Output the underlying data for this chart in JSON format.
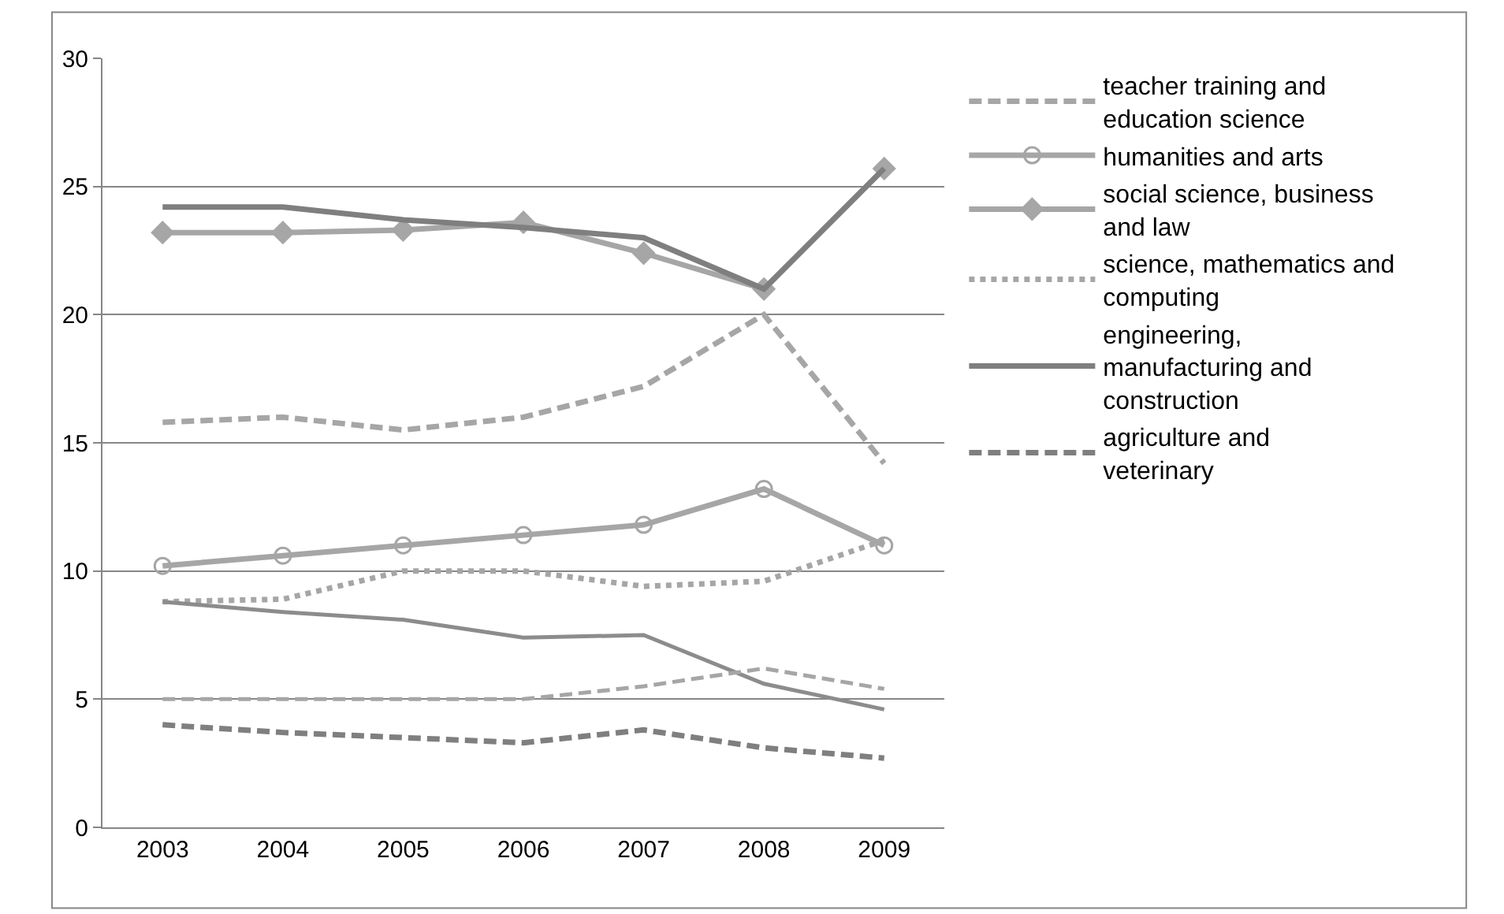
{
  "chart_data": {
    "type": "line",
    "categories": [
      "2003",
      "2004",
      "2005",
      "2006",
      "2007",
      "2008",
      "2009"
    ],
    "ylim": [
      0,
      30
    ],
    "yticks": [
      0,
      5,
      10,
      15,
      20,
      25,
      30
    ],
    "grid": "y",
    "legend": "right",
    "series": [
      {
        "name": "teacher training and education science",
        "color": "#a6a6a6",
        "line_style": "dashed",
        "marker": "none",
        "values": [
          15.8,
          16.0,
          15.5,
          16.0,
          17.2,
          20.0,
          14.2
        ]
      },
      {
        "name": "humanities and arts",
        "color": "#a6a6a6",
        "line_style": "solid",
        "marker": "circle",
        "values": [
          10.2,
          10.6,
          11.0,
          11.4,
          11.8,
          13.2,
          11.0
        ]
      },
      {
        "name": "social science, business and law",
        "color": "#a6a6a6",
        "line_style": "solid",
        "marker": "diamond",
        "values": [
          23.2,
          23.2,
          23.3,
          23.6,
          22.4,
          21.0,
          25.7
        ]
      },
      {
        "name": "science, mathematics and computing",
        "color": "#a6a6a6",
        "line_style": "dotted",
        "marker": "none",
        "values": [
          8.8,
          8.9,
          10.0,
          10.0,
          9.4,
          9.6,
          11.2
        ]
      },
      {
        "name": "engineering, manufacturing and construction",
        "color": "#7f7f7f",
        "line_style": "solid",
        "marker": "none",
        "values": [
          24.2,
          24.2,
          23.7,
          23.4,
          23.0,
          21.0,
          25.7
        ]
      },
      {
        "name": "agriculture and veterinary",
        "color": "#7f7f7f",
        "line_style": "dashed",
        "marker": "none",
        "values": [
          4.0,
          3.7,
          3.5,
          3.3,
          3.8,
          3.1,
          2.7
        ]
      },
      {
        "color": "#8c8c8c",
        "line_style": "solid",
        "marker": "none",
        "values": [
          8.8,
          8.4,
          8.1,
          7.4,
          7.5,
          5.6,
          4.6
        ]
      },
      {
        "color": "#a6a6a6",
        "line_style": "dashed",
        "marker": "none",
        "values": [
          5.0,
          5.0,
          5.0,
          5.0,
          5.5,
          6.2,
          5.4
        ]
      }
    ]
  }
}
